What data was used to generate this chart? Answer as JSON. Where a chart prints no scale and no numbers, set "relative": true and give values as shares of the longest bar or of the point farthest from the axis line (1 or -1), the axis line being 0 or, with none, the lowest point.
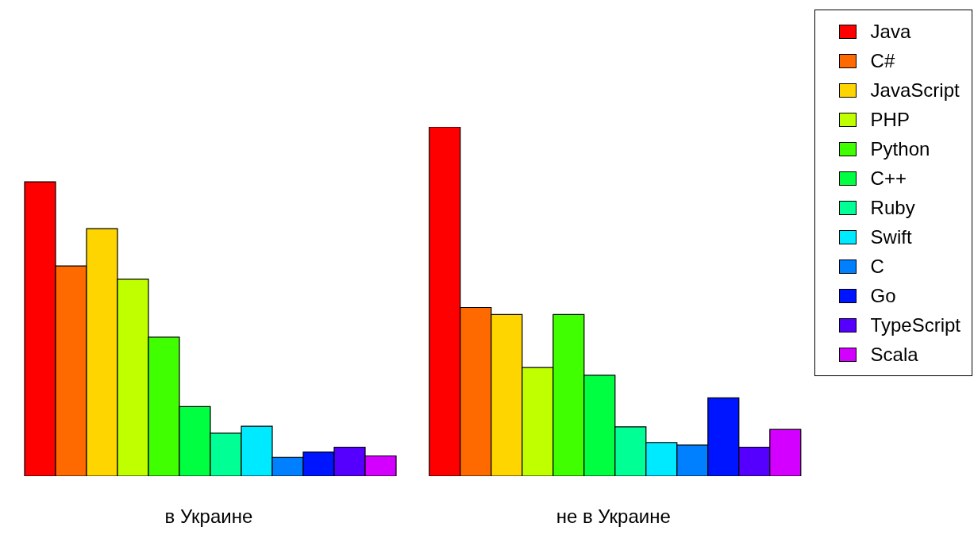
{
  "chart_data": {
    "type": "bar",
    "relative": true,
    "legend": "top right",
    "categories": [
      "в Украине",
      "не в Украине"
    ],
    "series": [
      {
        "name": "Java",
        "color": "#ff0000",
        "values": [
          0.843,
          1
        ]
      },
      {
        "name": "C#",
        "color": "#ff6a00",
        "values": [
          0.602,
          0.483
        ]
      },
      {
        "name": "JavaScript",
        "color": "#ffd500",
        "values": [
          0.709,
          0.463
        ]
      },
      {
        "name": "PHP",
        "color": "#bfff00",
        "values": [
          0.564,
          0.311
        ]
      },
      {
        "name": "Python",
        "color": "#40ff00",
        "values": [
          0.398,
          0.463
        ]
      },
      {
        "name": "C++",
        "color": "#00ff40",
        "values": [
          0.199,
          0.289
        ]
      },
      {
        "name": "Ruby",
        "color": "#00ff95",
        "values": [
          0.123,
          0.141
        ]
      },
      {
        "name": "Swift",
        "color": "#00eaff",
        "values": [
          0.143,
          0.096
        ]
      },
      {
        "name": "C",
        "color": "#0080ff",
        "values": [
          0.054,
          0.089
        ]
      },
      {
        "name": "Go",
        "color": "#0015ff",
        "values": [
          0.069,
          0.224
        ]
      },
      {
        "name": "TypeScript",
        "color": "#5500ff",
        "values": [
          0.083,
          0.083
        ]
      },
      {
        "name": "Scala",
        "color": "#d400ff",
        "values": [
          0.058,
          0.134
        ]
      }
    ]
  }
}
